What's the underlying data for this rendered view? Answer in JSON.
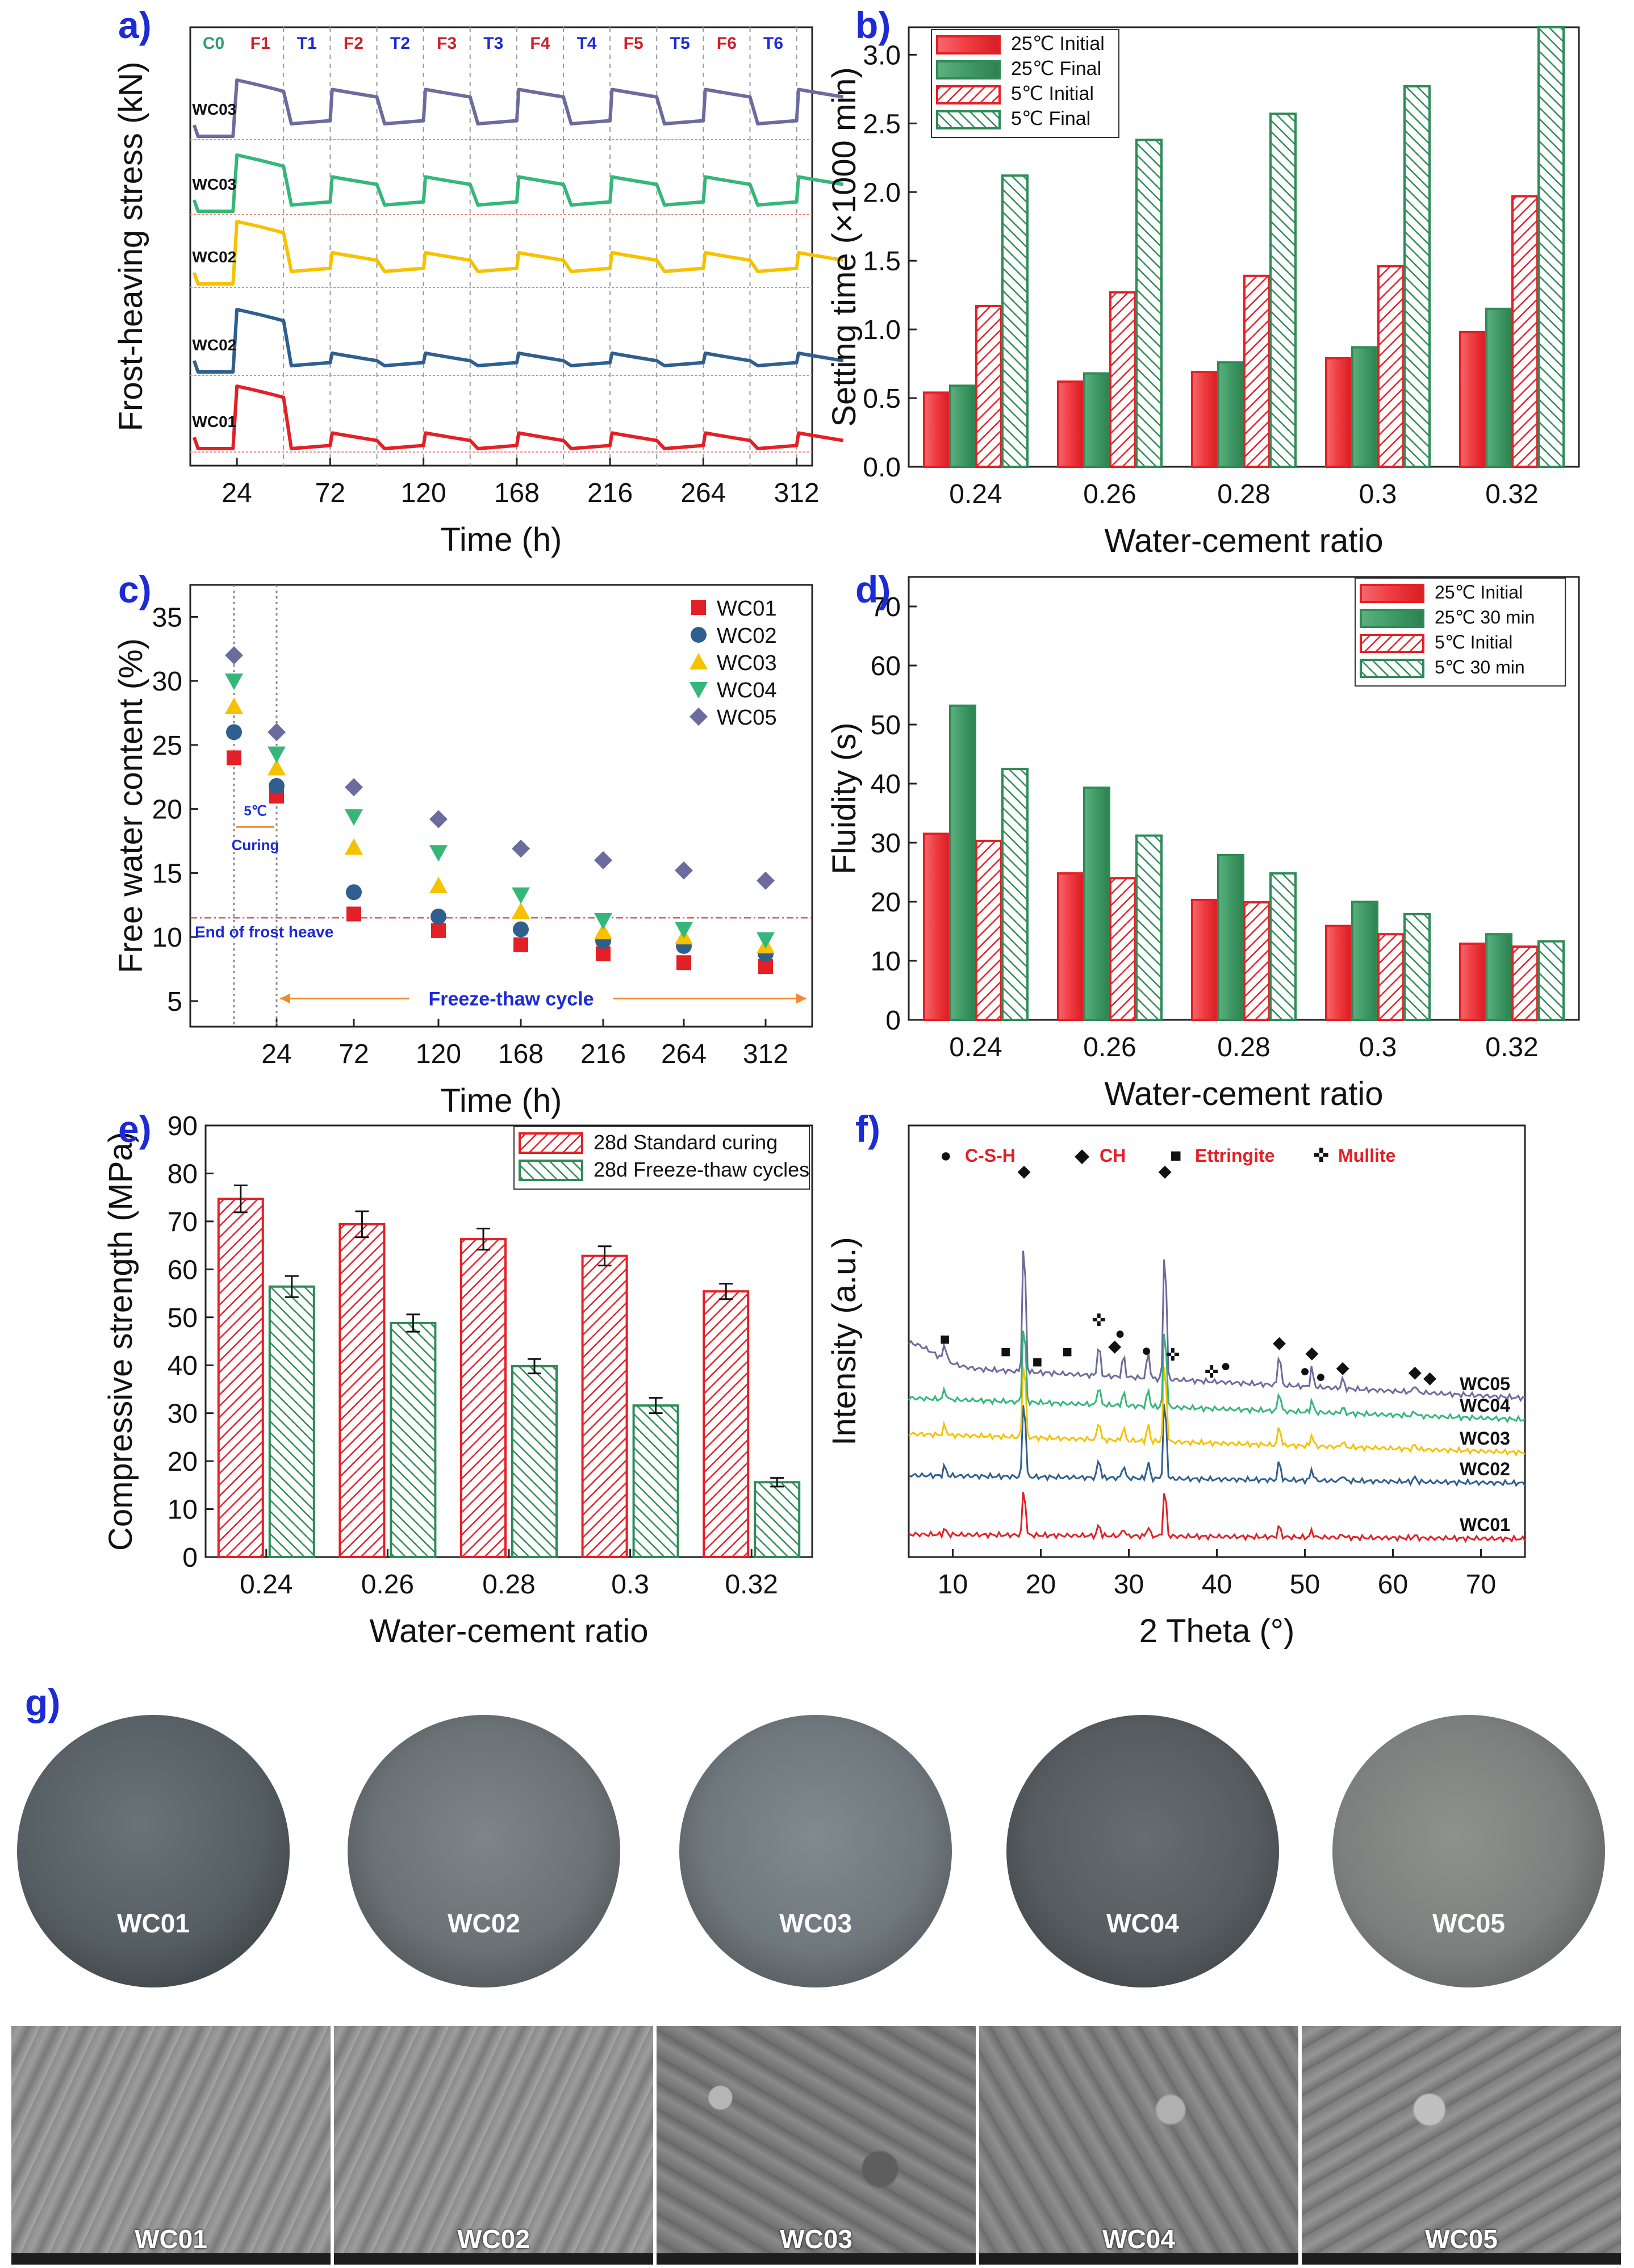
{
  "panel_labels": {
    "a": "a)",
    "b": "b)",
    "c": "c)",
    "d": "d)",
    "e": "e)",
    "f": "f)",
    "g": "g)"
  },
  "colors": {
    "red": "#e32026",
    "green": "#2e8b57",
    "blue": "#2f5f8f",
    "yellow": "#f6c200",
    "teal": "#35b77a",
    "purple": "#6b6b9d",
    "label_blue": "#1c2bd6",
    "xrd_red": "#e32026"
  },
  "chart_data": [
    {
      "id": "a",
      "type": "line",
      "title": "",
      "xlabel": "Time (h)",
      "ylabel": "Frost-heaving stress (kN)",
      "xlim": [
        0,
        320
      ],
      "xticks": [
        24,
        72,
        120,
        168,
        216,
        264,
        312
      ],
      "phase_labels": [
        "C0",
        "F1",
        "T1",
        "F2",
        "T2",
        "F3",
        "T3",
        "F4",
        "T4",
        "F5",
        "T5",
        "F6",
        "T6"
      ],
      "phase_boundaries": [
        24,
        48,
        72,
        96,
        120,
        144,
        168,
        192,
        216,
        240,
        264,
        288,
        312
      ],
      "series": [
        {
          "name": "WC01",
          "offset": 0,
          "peak1": 1.0,
          "peak": 0.25,
          "trough": 0.0,
          "color": "#e32026"
        },
        {
          "name": "WC02",
          "offset": 1,
          "peak1": 1.0,
          "peak": 0.3,
          "trough": 0.1,
          "color": "#2f5f8f"
        },
        {
          "name": "WC02",
          "offset": 2,
          "peak1": 1.0,
          "peak": 0.5,
          "trough": 0.2,
          "color": "#f6c200"
        },
        {
          "name": "WC03",
          "offset": 3,
          "peak1": 0.9,
          "peak": 0.55,
          "trough": 0.1,
          "color": "#35b77a"
        },
        {
          "name": "WC03",
          "offset": 4,
          "peak1": 0.9,
          "peak": 0.75,
          "trough": 0.2,
          "color": "#6b6b9d"
        }
      ]
    },
    {
      "id": "b",
      "type": "bar",
      "xlabel": "Water-cement ratio",
      "ylabel": "Setting time (×1000 min)",
      "categories": [
        "0.24",
        "0.26",
        "0.28",
        "0.3",
        "0.32"
      ],
      "ylim": [
        0.0,
        3.2
      ],
      "yticks": [
        "0.0",
        "0.5",
        "1.0",
        "1.5",
        "2.0",
        "2.5",
        "3.0"
      ],
      "series": [
        {
          "name": "25℃ Initial",
          "values": [
            0.54,
            0.62,
            0.69,
            0.79,
            0.98
          ],
          "style": "solid-red"
        },
        {
          "name": "25℃ Final",
          "values": [
            0.59,
            0.68,
            0.76,
            0.87,
            1.15
          ],
          "style": "solid-green"
        },
        {
          "name": "5℃ Initial",
          "values": [
            1.17,
            1.27,
            1.39,
            1.46,
            1.97
          ],
          "style": "hatch-red"
        },
        {
          "name": "5℃ Final",
          "values": [
            2.12,
            2.38,
            2.57,
            2.77,
            3.2
          ],
          "style": "hatch-green"
        }
      ]
    },
    {
      "id": "c",
      "type": "scatter",
      "xlabel": "Time (h)",
      "ylabel": "Free water content (%)",
      "ylim": [
        3,
        37.5
      ],
      "yticks": [
        "5",
        "10",
        "15",
        "20",
        "25",
        "30",
        "35"
      ],
      "xticks": [
        "24",
        "72",
        "120",
        "168",
        "216",
        "264",
        "312"
      ],
      "x": [
        0,
        24,
        72,
        120,
        168,
        216,
        264,
        312
      ],
      "series": [
        {
          "name": "WC01",
          "values": [
            24,
            21,
            11.8,
            10.5,
            9.4,
            8.7,
            8.0,
            7.7
          ],
          "marker": "square",
          "color": "#e32026"
        },
        {
          "name": "WC02",
          "values": [
            26,
            21.8,
            13.5,
            11.6,
            10.6,
            9.7,
            9.3,
            8.7
          ],
          "marker": "circle",
          "color": "#2f5f8f"
        },
        {
          "name": "WC03",
          "values": [
            28,
            23.2,
            17.0,
            14.0,
            12.0,
            10.4,
            10.0,
            9.3
          ],
          "marker": "triangle-up",
          "color": "#f6c200"
        },
        {
          "name": "WC04",
          "values": [
            30,
            24.3,
            19.4,
            16.6,
            13.3,
            11.3,
            10.6,
            9.8
          ],
          "marker": "triangle-down",
          "color": "#35b77a"
        },
        {
          "name": "WC05",
          "values": [
            32,
            26,
            21.7,
            19.2,
            16.9,
            16.0,
            15.2,
            14.4
          ],
          "marker": "diamond",
          "color": "#6b6b9d"
        }
      ],
      "hline": 11.5,
      "annotations": {
        "curing_temp": "5℃",
        "curing": "Curing",
        "end_frost": "End of frost heave",
        "ft_cycle": "Freeze-thaw cycle"
      }
    },
    {
      "id": "d",
      "type": "bar",
      "xlabel": "Water-cement ratio",
      "ylabel": "Fluidity (s)",
      "categories": [
        "0.24",
        "0.26",
        "0.28",
        "0.3",
        "0.32"
      ],
      "ylim": [
        0,
        75
      ],
      "yticks": [
        "0",
        "10",
        "20",
        "30",
        "40",
        "50",
        "60",
        "70"
      ],
      "series": [
        {
          "name": "25℃ Initial",
          "values": [
            31.5,
            24.8,
            20.3,
            15.9,
            12.9
          ],
          "style": "solid-red"
        },
        {
          "name": "25℃ 30 min",
          "values": [
            53.2,
            39.3,
            27.9,
            20.0,
            14.5
          ],
          "style": "solid-green"
        },
        {
          "name": "5℃ Initial",
          "values": [
            30.3,
            24.0,
            19.9,
            14.5,
            12.4
          ],
          "style": "hatch-red"
        },
        {
          "name": "5℃ 30 min",
          "values": [
            42.5,
            31.2,
            24.8,
            17.9,
            13.3
          ],
          "style": "hatch-green"
        }
      ]
    },
    {
      "id": "e",
      "type": "bar",
      "xlabel": "Water-cement ratio",
      "ylabel": "Compressive strength (MPa)",
      "categories": [
        "0.24",
        "0.26",
        "0.28",
        "0.3",
        "0.32"
      ],
      "ylim": [
        0,
        90
      ],
      "yticks": [
        "0",
        "10",
        "20",
        "30",
        "40",
        "50",
        "60",
        "70",
        "80",
        "90"
      ],
      "series": [
        {
          "name": "28d Standard curing",
          "values": [
            74.7,
            69.4,
            66.3,
            62.8,
            55.4
          ],
          "errors": [
            2.8,
            2.7,
            2.2,
            2.0,
            1.6
          ],
          "style": "hatch-red"
        },
        {
          "name": "28d Freeze-thaw cycles",
          "values": [
            56.4,
            48.8,
            39.8,
            31.6,
            15.6
          ],
          "errors": [
            2.2,
            1.8,
            1.5,
            1.6,
            0.9
          ],
          "style": "hatch-green"
        }
      ]
    },
    {
      "id": "f",
      "type": "line",
      "xlabel": "2 Theta (°)",
      "ylabel": "Intensity (a.u.)",
      "xlim": [
        5,
        75
      ],
      "xticks": [
        "10",
        "20",
        "30",
        "40",
        "50",
        "60",
        "70"
      ],
      "peaks": [
        9.1,
        18.1,
        26.6,
        29.4,
        32.2,
        34.1,
        47.1,
        50.8,
        54.3
      ],
      "series": [
        {
          "name": "WC01",
          "color": "#e32026"
        },
        {
          "name": "WC02",
          "color": "#2f5f8f"
        },
        {
          "name": "WC03",
          "color": "#f6c200"
        },
        {
          "name": "WC04",
          "color": "#35b77a"
        },
        {
          "name": "WC05",
          "color": "#6b6b9d"
        }
      ],
      "legend": [
        "C-S-H",
        "CH",
        "Ettringite",
        "Mullite"
      ],
      "marker_symbols": {
        "csh": "●",
        "ch": "◆",
        "ett": "■",
        "mul": "✜"
      }
    }
  ],
  "photos": {
    "disks": [
      "WC01",
      "WC02",
      "WC03",
      "WC04",
      "WC05"
    ],
    "sem": [
      "WC01",
      "WC02",
      "WC03",
      "WC04",
      "WC05"
    ]
  }
}
